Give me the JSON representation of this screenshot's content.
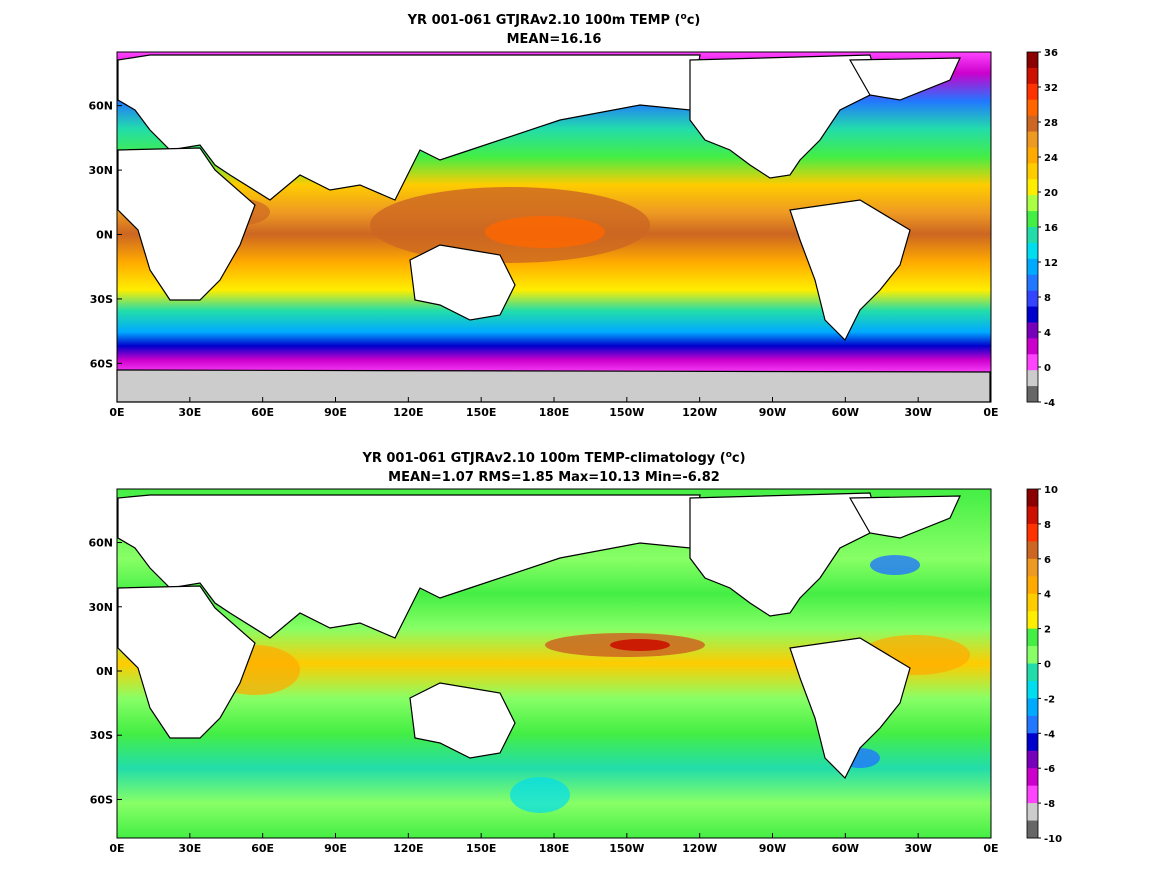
{
  "chart_data": [
    {
      "type": "heatmap",
      "title_prefix": "YR 001-061 GTJRAv2.10 100m TEMP (",
      "title_unit_sup": "o",
      "title_unit_rest": "c)",
      "subtitle": "MEAN=16.16",
      "xticks": [
        "0E",
        "30E",
        "60E",
        "90E",
        "120E",
        "150E",
        "180E",
        "150W",
        "120W",
        "90W",
        "60W",
        "30W",
        "0E"
      ],
      "yticks": [
        "60N",
        "30N",
        "0N",
        "30S",
        "60S"
      ],
      "colorbar": {
        "ticks": [
          "36",
          "32",
          "28",
          "24",
          "20",
          "16",
          "12",
          "8",
          "4",
          "0",
          "-4"
        ],
        "colors": [
          "#8b0000",
          "#cc1100",
          "#ff3300",
          "#ff6600",
          "#cc6622",
          "#ee9922",
          "#ffaa00",
          "#ffcc00",
          "#ffee00",
          "#aaff44",
          "#44ee44",
          "#22ddaa",
          "#00ddee",
          "#00aaff",
          "#2277ff",
          "#3344ff",
          "#0000cc",
          "#7700bb",
          "#cc00cc",
          "#ff44ff",
          "#cccccc",
          "#666666"
        ]
      },
      "latitude_bands": [
        {
          "lat": "80N",
          "value": 0
        },
        {
          "lat": "70N",
          "value": 3
        },
        {
          "lat": "60N",
          "value": 6
        },
        {
          "lat": "45N",
          "value": 10
        },
        {
          "lat": "30N",
          "value": 18
        },
        {
          "lat": "15N",
          "value": 24
        },
        {
          "lat": "0N",
          "value": 28
        },
        {
          "lat": "15S",
          "value": 24
        },
        {
          "lat": "30S",
          "value": 18
        },
        {
          "lat": "45S",
          "value": 10
        },
        {
          "lat": "55S",
          "value": 4
        },
        {
          "lat": "65S",
          "value": 0
        },
        {
          "lat": "78S",
          "value": -1
        }
      ]
    },
    {
      "type": "heatmap",
      "title_prefix": "YR 001-061 GTJRAv2.10 100m TEMP-climatology (",
      "title_unit_sup": "o",
      "title_unit_rest": "c)",
      "subtitle": "MEAN=1.07   RMS=1.85   Max=10.13   Min=-6.82",
      "xticks": [
        "0E",
        "30E",
        "60E",
        "90E",
        "120E",
        "150E",
        "180E",
        "150W",
        "120W",
        "90W",
        "60W",
        "30W",
        "0E"
      ],
      "yticks": [
        "60N",
        "30N",
        "0N",
        "30S",
        "60S"
      ],
      "colorbar": {
        "ticks": [
          "10",
          "8",
          "6",
          "4",
          "2",
          "0",
          "-2",
          "-4",
          "-6",
          "-8",
          "-10"
        ],
        "colors": [
          "#8b0000",
          "#cc1100",
          "#ff3300",
          "#cc6622",
          "#ee9922",
          "#ffaa00",
          "#ffcc00",
          "#ffee00",
          "#44ee44",
          "#88ff66",
          "#22ddaa",
          "#00ddee",
          "#00aaff",
          "#2277ff",
          "#0000cc",
          "#7700bb",
          "#cc00cc",
          "#ff44ff",
          "#cccccc",
          "#666666"
        ]
      },
      "latitude_bands": [
        {
          "lat": "80N",
          "value": 0.5
        },
        {
          "lat": "60N",
          "value": 0.5
        },
        {
          "lat": "40N",
          "value": 1.5
        },
        {
          "lat": "20N",
          "value": 1
        },
        {
          "lat": "0N",
          "value": 2
        },
        {
          "lat": "20S",
          "value": 1
        },
        {
          "lat": "40S",
          "value": 0
        },
        {
          "lat": "60S",
          "value": 0.5
        },
        {
          "lat": "78S",
          "value": 0.5
        }
      ]
    }
  ]
}
